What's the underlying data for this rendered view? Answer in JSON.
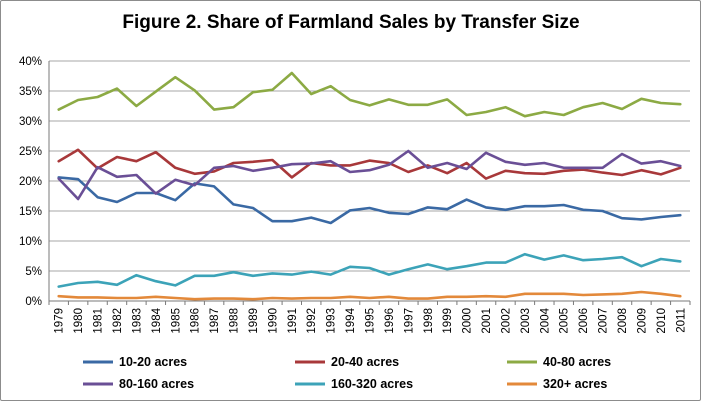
{
  "chart_data": {
    "type": "line",
    "title": "Figure 2. Share of Farmland Sales by Transfer Size",
    "xlabel": "",
    "ylabel": "",
    "ylim": [
      0,
      40
    ],
    "ytick_labels": [
      "0%",
      "5%",
      "10%",
      "15%",
      "20%",
      "25%",
      "30%",
      "35%",
      "40%"
    ],
    "grid": "horizontal",
    "legend_position": "bottom",
    "categories": [
      "1979",
      "1980",
      "1981",
      "1982",
      "1983",
      "1984",
      "1985",
      "1986",
      "1987",
      "1988",
      "1989",
      "1990",
      "1991",
      "1992",
      "1993",
      "1994",
      "1995",
      "1996",
      "1997",
      "1998",
      "1999",
      "2000",
      "2001",
      "2002",
      "2003",
      "2004",
      "2005",
      "2006",
      "2007",
      "2008",
      "2009",
      "2010",
      "2011"
    ],
    "series": [
      {
        "name": "10-20 acres",
        "color": "#3a69a4",
        "values": [
          20.6,
          20.3,
          17.3,
          16.5,
          18.0,
          18.0,
          16.8,
          19.6,
          19.1,
          16.1,
          15.5,
          13.3,
          13.3,
          13.9,
          13.0,
          15.1,
          15.5,
          14.7,
          14.5,
          15.6,
          15.3,
          16.9,
          15.6,
          15.2,
          15.8,
          15.8,
          16.0,
          15.2,
          15.0,
          13.8,
          13.6,
          14.0,
          14.3
        ]
      },
      {
        "name": "20-40 acres",
        "color": "#a8383a",
        "values": [
          23.3,
          25.2,
          22.1,
          24.0,
          23.3,
          24.8,
          22.2,
          21.2,
          21.6,
          23.0,
          23.2,
          23.5,
          20.6,
          23.0,
          22.6,
          22.6,
          23.4,
          23.0,
          21.5,
          22.6,
          21.3,
          23.0,
          20.4,
          21.7,
          21.3,
          21.2,
          21.7,
          21.9,
          21.4,
          21.0,
          21.8,
          21.1,
          22.2
        ]
      },
      {
        "name": "40-80 acres",
        "color": "#8caa44",
        "values": [
          31.9,
          33.5,
          34.0,
          35.4,
          32.5,
          34.9,
          37.3,
          35.1,
          31.9,
          32.3,
          34.8,
          35.2,
          38.0,
          34.5,
          35.8,
          33.5,
          32.6,
          33.6,
          32.7,
          32.7,
          33.6,
          31.0,
          31.5,
          32.3,
          30.8,
          31.5,
          31.0,
          32.3,
          33.0,
          32.0,
          33.7,
          33.0,
          32.8
        ]
      },
      {
        "name": "80-160 acres",
        "color": "#6a4f96",
        "values": [
          20.4,
          17.0,
          22.3,
          20.7,
          21.0,
          17.9,
          20.2,
          19.3,
          22.2,
          22.5,
          21.7,
          22.2,
          22.8,
          22.9,
          23.3,
          21.5,
          21.8,
          22.7,
          25.0,
          22.2,
          23.0,
          22.0,
          24.7,
          23.2,
          22.7,
          23.0,
          22.2,
          22.2,
          22.2,
          24.5,
          22.9,
          23.3,
          22.5
        ]
      },
      {
        "name": "160-320 acres",
        "color": "#3ca3b8",
        "values": [
          2.4,
          3.0,
          3.2,
          2.7,
          4.3,
          3.3,
          2.6,
          4.2,
          4.2,
          4.8,
          4.2,
          4.6,
          4.4,
          4.9,
          4.4,
          5.7,
          5.5,
          4.4,
          5.3,
          6.1,
          5.3,
          5.8,
          6.4,
          6.4,
          7.8,
          6.9,
          7.6,
          6.8,
          7.0,
          7.3,
          5.8,
          7.0,
          6.6
        ]
      },
      {
        "name": "320+ acres",
        "color": "#e3893a",
        "values": [
          0.8,
          0.6,
          0.6,
          0.5,
          0.5,
          0.7,
          0.5,
          0.3,
          0.4,
          0.4,
          0.3,
          0.5,
          0.4,
          0.5,
          0.5,
          0.7,
          0.5,
          0.7,
          0.4,
          0.4,
          0.7,
          0.7,
          0.8,
          0.7,
          1.2,
          1.2,
          1.2,
          1.0,
          1.1,
          1.2,
          1.5,
          1.2,
          0.8
        ]
      }
    ]
  }
}
